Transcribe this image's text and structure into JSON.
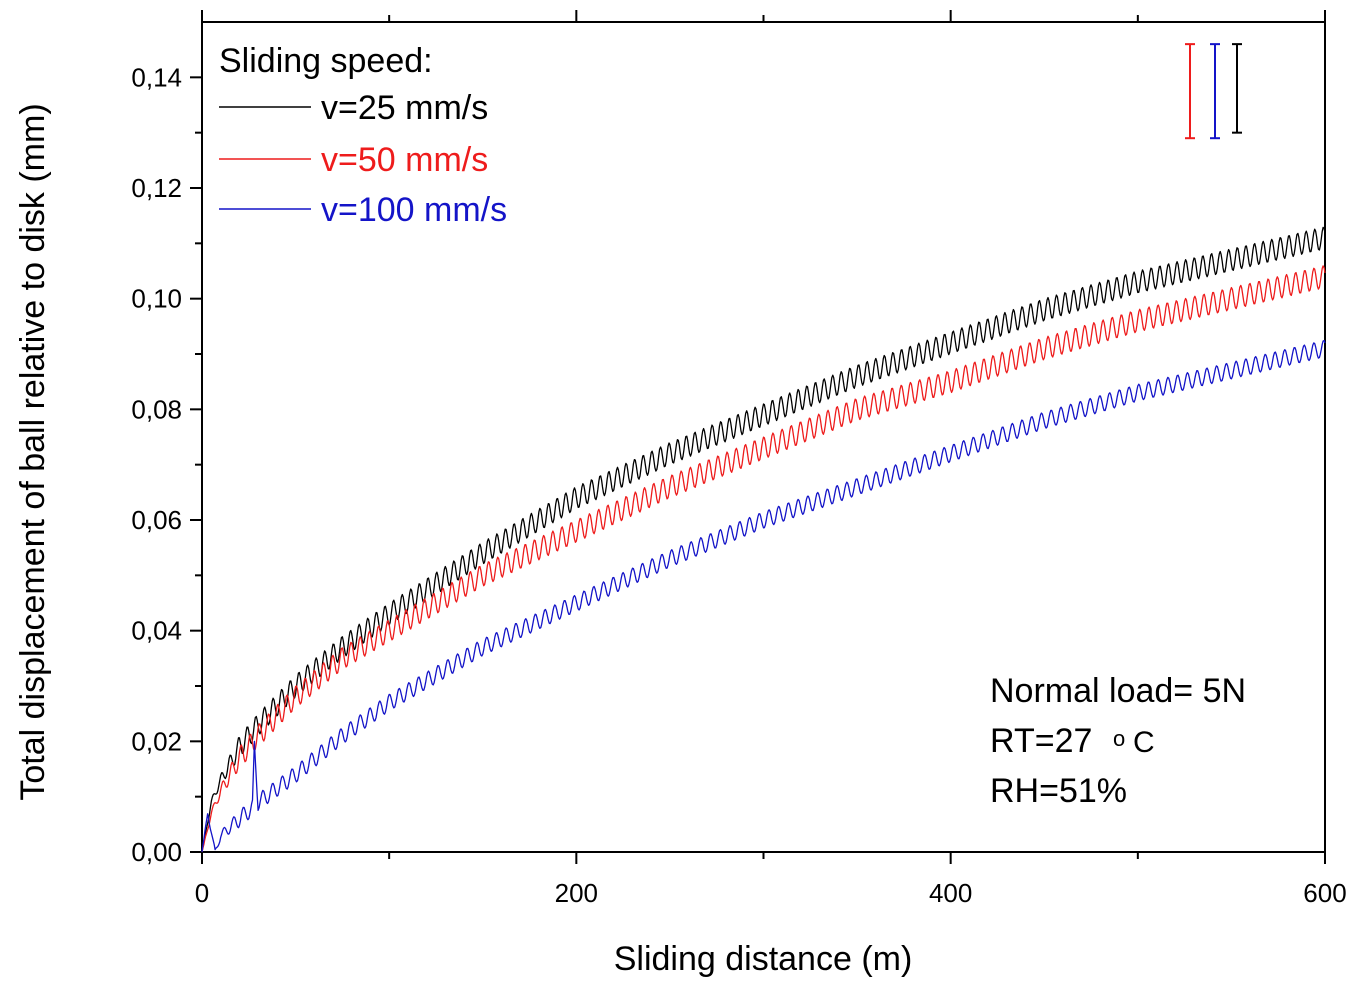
{
  "chart_data": {
    "type": "line",
    "xlabel": "Sliding distance (m)",
    "ylabel": "Total displacement of ball relative to disk (mm)",
    "xlim": [
      0,
      600
    ],
    "ylim": [
      0,
      0.15
    ],
    "xticks": [
      0,
      200,
      400,
      600
    ],
    "xtick_labels": [
      "0",
      "200",
      "400",
      "600"
    ],
    "yticks": [
      0,
      0.02,
      0.04,
      0.06,
      0.08,
      0.1,
      0.12,
      0.14
    ],
    "ytick_labels": [
      "0,00",
      "0,02",
      "0,04",
      "0,06",
      "0,08",
      "0,10",
      "0,12",
      "0,14"
    ],
    "grid": false,
    "legend": {
      "title": "Sliding speed:",
      "placement": "top-left"
    },
    "series": [
      {
        "name": "v=25 mm/s",
        "color": "#000000",
        "x": [
          0,
          5,
          10,
          20,
          30,
          50,
          75,
          100,
          150,
          200,
          250,
          300,
          350,
          400,
          450,
          500,
          550,
          600
        ],
        "y": [
          0.0,
          0.009,
          0.013,
          0.019,
          0.023,
          0.03,
          0.037,
          0.043,
          0.054,
          0.064,
          0.072,
          0.079,
          0.086,
          0.092,
          0.098,
          0.103,
          0.107,
          0.111
        ],
        "oscillation_amplitude": 0.002,
        "error_bar": {
          "low": 0.13,
          "high": 0.146
        }
      },
      {
        "name": "v=50 mm/s",
        "color": "#ee1c1c",
        "x": [
          0,
          5,
          10,
          20,
          30,
          50,
          75,
          100,
          150,
          200,
          250,
          300,
          350,
          400,
          450,
          500,
          550,
          600
        ],
        "y": [
          0.0,
          0.007,
          0.011,
          0.017,
          0.021,
          0.028,
          0.035,
          0.04,
          0.05,
          0.058,
          0.066,
          0.073,
          0.08,
          0.085,
          0.091,
          0.096,
          0.1,
          0.104
        ],
        "oscillation_amplitude": 0.002,
        "error_bar": {
          "low": 0.129,
          "high": 0.146
        }
      },
      {
        "name": "v=100 mm/s",
        "color": "#1414c8",
        "x": [
          0,
          3,
          7,
          10,
          20,
          27,
          28,
          30,
          50,
          75,
          100,
          150,
          200,
          250,
          300,
          350,
          400,
          450,
          500,
          550,
          600
        ],
        "y": [
          0.0,
          0.007,
          0.0,
          0.003,
          0.006,
          0.008,
          0.019,
          0.009,
          0.014,
          0.021,
          0.027,
          0.037,
          0.045,
          0.053,
          0.06,
          0.066,
          0.072,
          0.078,
          0.083,
          0.087,
          0.091
        ],
        "oscillation_amplitude": 0.0015,
        "error_bar": {
          "low": 0.129,
          "high": 0.146
        }
      }
    ],
    "annotations": [
      "Normal load= 5N",
      "RT=27",
      "o",
      "C",
      "RH=51%"
    ]
  }
}
